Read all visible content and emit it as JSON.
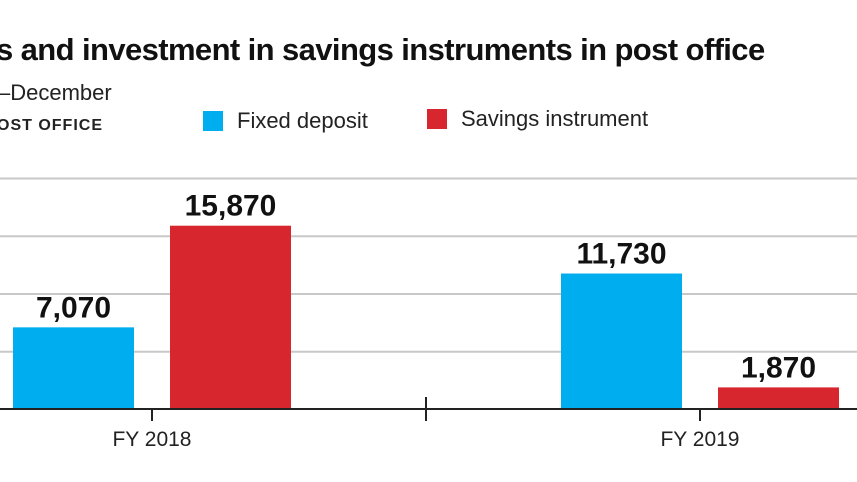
{
  "header": {
    "title": "s and investment in savings instruments in post office",
    "subtitle": "–December",
    "source": "OST OFFICE"
  },
  "legend": [
    {
      "label": "Fixed deposit",
      "color": "#00adef"
    },
    {
      "label": "Savings instrument",
      "color": "#d7262e"
    }
  ],
  "chart_data": {
    "type": "bar",
    "categories": [
      "FY 2018",
      "FY 2019"
    ],
    "series": [
      {
        "name": "Fixed deposit",
        "values": [
          7070,
          11730
        ],
        "labels": [
          "7,070",
          "11,730"
        ],
        "color": "#00adef"
      },
      {
        "name": "Savings instrument",
        "values": [
          15870,
          1870
        ],
        "labels": [
          "15,870",
          "1,870"
        ],
        "color": "#d7262e"
      }
    ],
    "ylim": [
      0,
      20000
    ],
    "grid": true,
    "legend_position": "top"
  }
}
